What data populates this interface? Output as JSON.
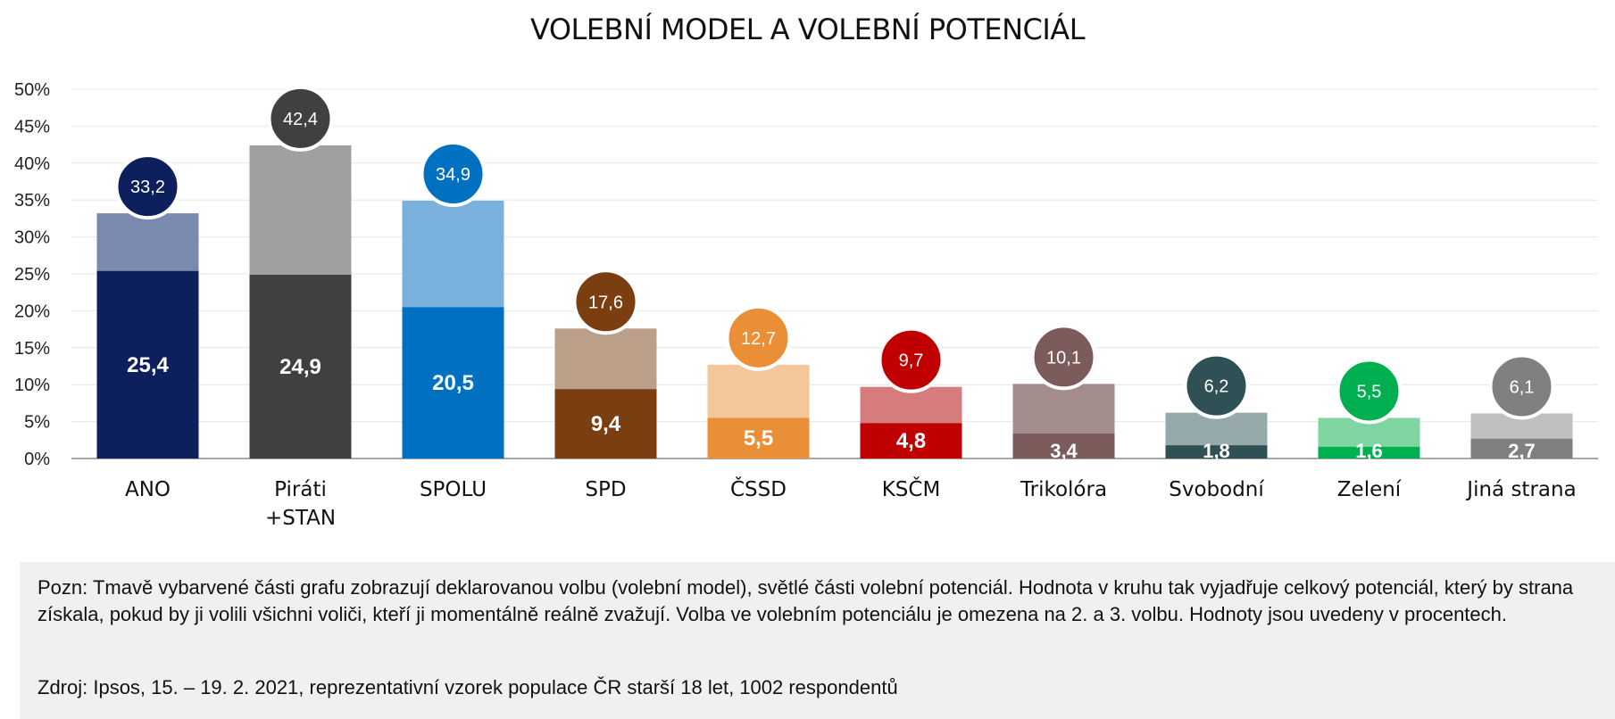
{
  "chart_data": {
    "type": "bar",
    "title": "VOLEBNÍ MODEL A VOLEBNÍ POTENCIÁL",
    "xlabel": "",
    "ylabel": "",
    "ylim": [
      0,
      50
    ],
    "yticks": [
      "0%",
      "5%",
      "10%",
      "15%",
      "20%",
      "25%",
      "30%",
      "35%",
      "40%",
      "45%",
      "50%"
    ],
    "grid": true,
    "stacked": true,
    "categories": [
      [
        "ANO"
      ],
      [
        "Piráti",
        "+STAN"
      ],
      [
        "SPOLU"
      ],
      [
        "SPD"
      ],
      [
        "ČSSD"
      ],
      [
        "KSČM"
      ],
      [
        "Trikolóra"
      ],
      [
        "Svobodní"
      ],
      [
        "Zelení"
      ],
      [
        "Jiná strana"
      ]
    ],
    "model_values": [
      25.4,
      24.9,
      20.5,
      9.4,
      5.5,
      4.8,
      3.4,
      1.8,
      1.6,
      2.7
    ],
    "potential_values": [
      33.2,
      42.4,
      34.9,
      17.6,
      12.7,
      9.7,
      10.1,
      6.2,
      5.5,
      6.1
    ],
    "model_labels": [
      "25,4",
      "24,9",
      "20,5",
      "9,4",
      "5,5",
      "4,8",
      "3,4",
      "1,8",
      "1,6",
      "2,7"
    ],
    "potential_labels": [
      "33,2",
      "42,4",
      "34,9",
      "17,6",
      "12,7",
      "9,7",
      "10,1",
      "6,2",
      "5,5",
      "6,1"
    ],
    "dark_colors": [
      "#0d1f5c",
      "#404040",
      "#0070c0",
      "#7a3e10",
      "#eb8f36",
      "#c00000",
      "#7b5c5a",
      "#2f5156",
      "#00b050",
      "#808080"
    ],
    "light_colors": [
      "#7a8aaf",
      "#a0a0a0",
      "#79b0dc",
      "#bc9f89",
      "#f4c79b",
      "#d67c7c",
      "#a38d8c",
      "#97aaab",
      "#80d6a3",
      "#bfbfbf"
    ]
  },
  "note": {
    "text": "Pozn: Tmavě vybarvené části grafu zobrazují deklarovanou volbu (volební model), světlé části volební potenciál. Hodnota v kruhu tak vyjadřuje celkový potenciál, který by strana získala, pokud by ji volili všichni voliči, kteří ji momentálně reálně zvažují. Volba ve volebním potenciálu je omezena na 2. a 3. volbu. Hodnoty jsou uvedeny v procentech.",
    "source": "Zdroj: Ipsos, 15. – 19. 2. 2021, reprezentativní vzorek populace ČR starší 18 let, 1002 respondentů"
  }
}
